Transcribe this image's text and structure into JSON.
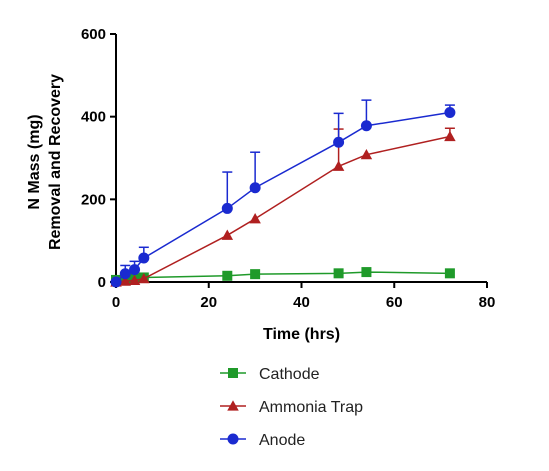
{
  "chart_data": {
    "type": "line",
    "title": "",
    "xlabel": "Time (hrs)",
    "ylabel_lines": [
      "N Mass (mg)",
      "Removal and Recovery"
    ],
    "xlim": [
      0,
      80
    ],
    "ylim": [
      0,
      600
    ],
    "xticks": [
      0,
      20,
      40,
      60,
      80
    ],
    "yticks": [
      0,
      200,
      400,
      600
    ],
    "grid": false,
    "legend_position": "bottom",
    "series": [
      {
        "name": "Cathode",
        "color": "#1f9a2a",
        "marker": "square",
        "x": [
          0,
          2,
          4,
          6,
          24,
          30,
          48,
          54,
          72
        ],
        "y": [
          5,
          7,
          9,
          11,
          15,
          19,
          21,
          24,
          21
        ],
        "err": [
          0,
          0,
          0,
          0,
          0,
          0,
          0,
          0,
          0
        ]
      },
      {
        "name": "Ammonia Trap",
        "color": "#b02020",
        "marker": "triangle",
        "x": [
          0,
          2,
          4,
          6,
          24,
          30,
          48,
          54,
          72
        ],
        "y": [
          0,
          2,
          4,
          8,
          113,
          153,
          280,
          308,
          352
        ],
        "err": [
          0,
          0,
          0,
          0,
          0,
          0,
          90,
          0,
          20
        ]
      },
      {
        "name": "Anode",
        "color": "#1a2ad0",
        "marker": "circle",
        "x": [
          0,
          2,
          4,
          6,
          24,
          30,
          48,
          54,
          72
        ],
        "y": [
          0,
          20,
          30,
          58,
          178,
          228,
          338,
          378,
          410
        ],
        "err": [
          0,
          20,
          20,
          26,
          88,
          86,
          70,
          62,
          18
        ]
      }
    ]
  }
}
